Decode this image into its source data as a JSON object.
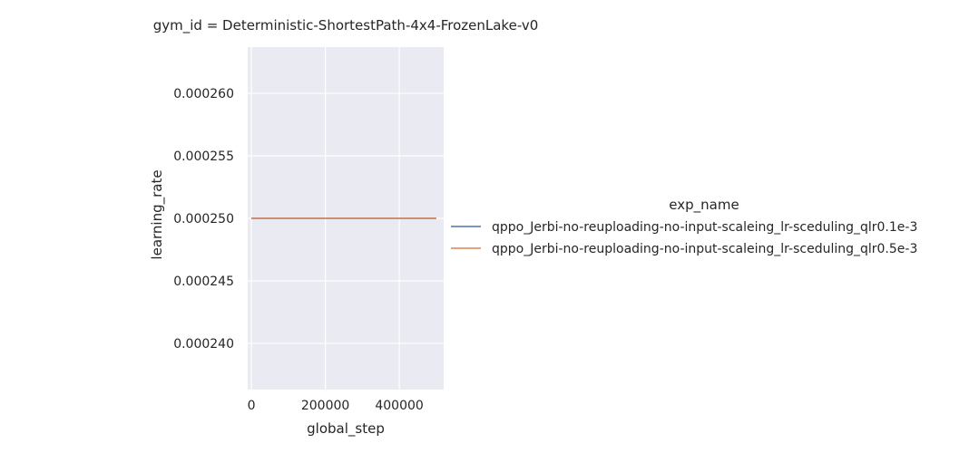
{
  "chart_data": {
    "type": "line",
    "title": "gym_id = Deterministic-ShortestPath-4x4-FrozenLake-v0",
    "xlabel": "global_step",
    "ylabel": "learning_rate",
    "xlim": [
      -10000,
      520000
    ],
    "ylim": [
      0.0002363,
      0.0002637
    ],
    "x_ticks": [
      0,
      200000,
      400000
    ],
    "x_tick_labels": [
      "0",
      "200000",
      "400000"
    ],
    "y_ticks": [
      0.00024,
      0.000245,
      0.00025,
      0.000255,
      0.00026
    ],
    "y_tick_labels": [
      "0.000240",
      "0.000245",
      "0.000250",
      "0.000255",
      "0.000260"
    ],
    "grid": true,
    "legend": {
      "title": "exp_name",
      "placement": "right"
    },
    "series": [
      {
        "name": "qppo_Jerbi-no-reuploading-no-input-scaleing_lr-sceduling_qlr0.1e-3",
        "color": "#4c72b0",
        "x": [
          0,
          500000
        ],
        "y": [
          0.00025,
          0.00025
        ]
      },
      {
        "name": "qppo_Jerbi-no-reuploading-no-input-scaleing_lr-sceduling_qlr0.5e-3",
        "color": "#dd8452",
        "x": [
          0,
          500000
        ],
        "y": [
          0.00025,
          0.00025
        ]
      }
    ],
    "background_color": "#eaeaf2",
    "grid_color": "#ffffff"
  }
}
